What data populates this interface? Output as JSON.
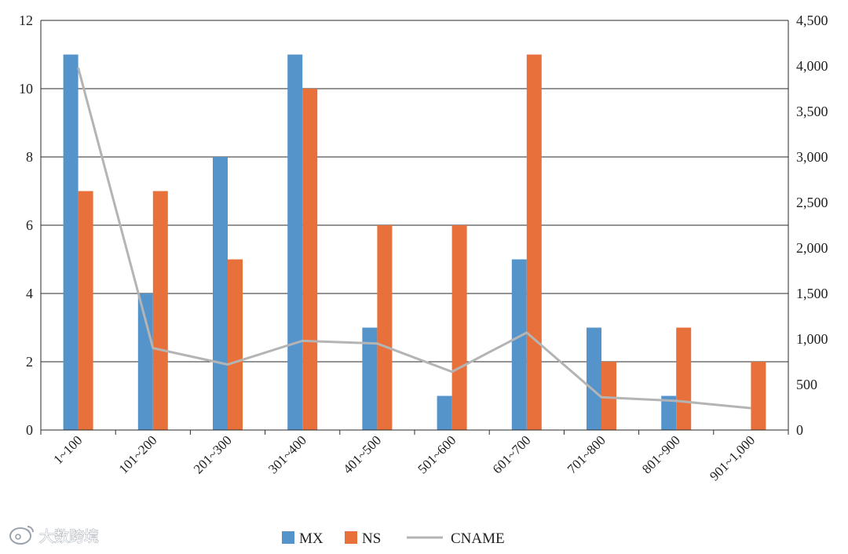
{
  "chart_data": {
    "type": "bar",
    "categories": [
      "1~100",
      "101~200",
      "201~300",
      "301~400",
      "401~500",
      "501~600",
      "601~700",
      "701~800",
      "801~900",
      "901~1,000"
    ],
    "series": [
      {
        "name": "MX",
        "type": "bar",
        "axis": "left",
        "color": "#5594cb",
        "values": [
          11,
          4,
          8,
          11,
          3,
          1,
          5,
          3,
          1,
          0
        ]
      },
      {
        "name": "NS",
        "type": "bar",
        "axis": "left",
        "color": "#e8703a",
        "values": [
          7,
          7,
          5,
          10,
          6,
          6,
          11,
          2,
          3,
          2
        ]
      },
      {
        "name": "CNAME",
        "type": "line",
        "axis": "right",
        "color": "#b4b4b4",
        "values": [
          3980,
          900,
          720,
          980,
          950,
          640,
          1070,
          360,
          320,
          240
        ]
      }
    ],
    "y_left": {
      "min": 0,
      "max": 12,
      "ticks": [
        "0",
        "2",
        "4",
        "6",
        "8",
        "10",
        "12"
      ]
    },
    "y_right": {
      "min": 0,
      "max": 4500,
      "ticks": [
        "0",
        "500",
        "1,000",
        "1,500",
        "2,000",
        "2,500",
        "3,000",
        "3,500",
        "4,000",
        "4,500"
      ]
    },
    "grid": true,
    "legend": {
      "position": "bottom",
      "entries": [
        "MX",
        "NS",
        "CNAME"
      ]
    }
  },
  "watermark": {
    "icon": "weibo-logo-icon",
    "text": "大数跨境"
  }
}
